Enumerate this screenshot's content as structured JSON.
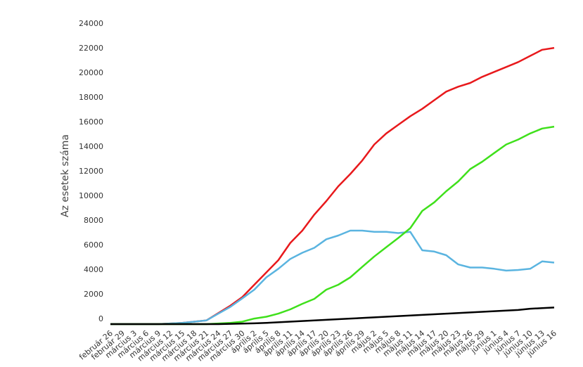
{
  "chart_data": {
    "type": "line",
    "y_label": "Az esetek száma",
    "categories": [
      "február 26",
      "február 29",
      "március 3",
      "március 6",
      "március 9",
      "március 12",
      "március 15",
      "március 18",
      "március 21",
      "március 24",
      "március 27",
      "március 30",
      "április 2",
      "április 5",
      "április 8",
      "április 11",
      "április 14",
      "április 17",
      "április 20",
      "április 23",
      "április 26",
      "április 29",
      "május 2",
      "május 5",
      "május 8",
      "május 11",
      "május 14",
      "május 17",
      "május 20",
      "május 23",
      "május 26",
      "május 29",
      "június 1",
      "június 4",
      "június 7",
      "június 10",
      "június 13",
      "június 16"
    ],
    "series": [
      {
        "color": "#e8191c",
        "values": [
          0,
          0,
          0,
          0,
          0,
          50,
          100,
          200,
          300,
          900,
          1500,
          2200,
          3200,
          4200,
          5200,
          6600,
          7600,
          8900,
          10000,
          11200,
          12200,
          13300,
          14600,
          15500,
          16200,
          16900,
          17500,
          18200,
          18900,
          19300,
          19600,
          20100,
          20500,
          20900,
          21300,
          21800,
          22300,
          22450
        ]
      },
      {
        "color": "#5ab4e0",
        "values": [
          0,
          0,
          0,
          0,
          0,
          50,
          100,
          200,
          300,
          850,
          1400,
          2100,
          2800,
          3800,
          4500,
          5300,
          5800,
          6200,
          6900,
          7200,
          7600,
          7600,
          7500,
          7500,
          7400,
          7500,
          6000,
          5900,
          5600,
          4850,
          4600,
          4600,
          4500,
          4350,
          4400,
          4500,
          5100,
          5000
        ]
      },
      {
        "color": "#3fe01b",
        "values": [
          0,
          0,
          0,
          0,
          0,
          0,
          0,
          0,
          0,
          50,
          100,
          200,
          450,
          600,
          850,
          1200,
          1650,
          2050,
          2800,
          3200,
          3800,
          4650,
          5500,
          6250,
          7000,
          7800,
          9200,
          9900,
          10800,
          11600,
          12600,
          13200,
          13900,
          14600,
          15000,
          15500,
          15900,
          16050
        ]
      },
      {
        "color": "#000000",
        "values": [
          0,
          0,
          0,
          0,
          0,
          0,
          0,
          0,
          0,
          0,
          20,
          40,
          60,
          100,
          150,
          200,
          250,
          300,
          350,
          400,
          450,
          500,
          550,
          600,
          650,
          700,
          750,
          800,
          850,
          900,
          950,
          1000,
          1050,
          1100,
          1150,
          1250,
          1300,
          1350
        ]
      }
    ],
    "ylim": [
      0,
      24000
    ],
    "yticks": [
      0,
      2000,
      4000,
      6000,
      8000,
      10000,
      12000,
      14000,
      16000,
      18000,
      20000,
      22000,
      24000
    ]
  }
}
